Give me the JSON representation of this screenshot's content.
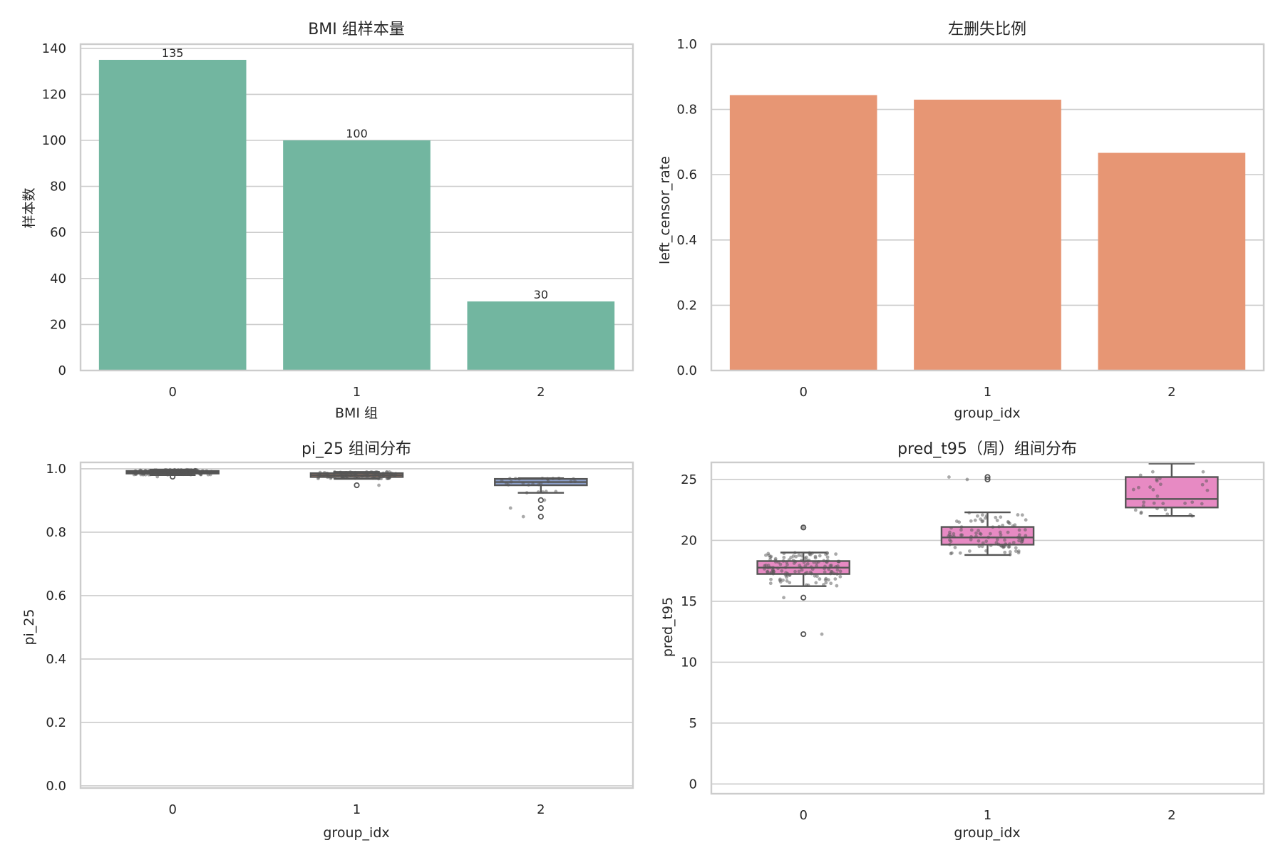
{
  "figure": {
    "background": "#ffffff",
    "grid_color": "#cccccc",
    "text_color": "#262626"
  },
  "chart_data": [
    {
      "id": "bmi-count",
      "type": "bar",
      "title": "BMI 组样本量",
      "xlabel": "BMI 组",
      "ylabel": "样本数",
      "categories": [
        "0",
        "1",
        "2"
      ],
      "values": [
        135,
        100,
        30
      ],
      "data_labels": [
        "135",
        "100",
        "30"
      ],
      "yticks": [
        0,
        20,
        40,
        60,
        80,
        100,
        120,
        140
      ],
      "ytick_labels": [
        "0",
        "20",
        "40",
        "60",
        "80",
        "100",
        "120",
        "140"
      ],
      "ylim": [
        0,
        141.8
      ],
      "grid": true,
      "color": "#72b6a0"
    },
    {
      "id": "left-censor",
      "type": "bar",
      "title": "左删失比例",
      "xlabel": "group_idx",
      "ylabel": "left_censor_rate",
      "categories": [
        "0",
        "1",
        "2"
      ],
      "values": [
        0.844,
        0.83,
        0.667
      ],
      "yticks": [
        0.0,
        0.2,
        0.4,
        0.6,
        0.8,
        1.0
      ],
      "ytick_labels": [
        "0.0",
        "0.2",
        "0.4",
        "0.6",
        "0.8",
        "1.0"
      ],
      "ylim": [
        0,
        1.0
      ],
      "grid": true,
      "color": "#e79674"
    },
    {
      "id": "pi25-box",
      "type": "box",
      "title": "pi_25 组间分布",
      "xlabel": "group_idx",
      "ylabel": "pi_25",
      "categories": [
        "0",
        "1",
        "2"
      ],
      "boxes": [
        {
          "q1": 0.985,
          "median": 0.99,
          "q3": 0.993,
          "whisker_low": 0.98,
          "whisker_high": 0.997,
          "outliers": [
            0.975
          ],
          "n": 135,
          "color": "#72b6a0"
        },
        {
          "q1": 0.974,
          "median": 0.98,
          "q3": 0.986,
          "whisker_low": 0.968,
          "whisker_high": 0.99,
          "outliers": [
            0.948
          ],
          "n": 100,
          "color": "#e79674"
        },
        {
          "q1": 0.948,
          "median": 0.958,
          "q3": 0.968,
          "whisker_low": 0.924,
          "whisker_high": 0.97,
          "outliers": [
            0.901,
            0.876,
            0.849
          ],
          "n": 30,
          "color": "#8da0cb"
        }
      ],
      "yticks": [
        0.0,
        0.2,
        0.4,
        0.6,
        0.8,
        1.0
      ],
      "ytick_labels": [
        "0.0",
        "0.2",
        "0.4",
        "0.6",
        "0.8",
        "1.0"
      ],
      "ylim": [
        -0.007,
        1.02
      ],
      "grid": true,
      "strip_points": true
    },
    {
      "id": "pred-t95-box",
      "type": "box",
      "title": "pred_t95（周）组间分布",
      "xlabel": "group_idx",
      "ylabel": "pred_t95",
      "categories": [
        "0",
        "1",
        "2"
      ],
      "boxes": [
        {
          "q1": 17.24,
          "median": 17.76,
          "q3": 18.3,
          "whisker_low": 16.24,
          "whisker_high": 19.0,
          "outliers": [
            21.06,
            15.3,
            12.3
          ],
          "n": 135,
          "color": "#e78ac3"
        },
        {
          "q1": 19.65,
          "median": 20.24,
          "q3": 21.1,
          "whisker_low": 18.8,
          "whisker_high": 22.3,
          "outliers": [
            25.0,
            25.2
          ],
          "n": 100,
          "color": "#e78ac3"
        },
        {
          "q1": 22.7,
          "median": 23.4,
          "q3": 25.2,
          "whisker_low": 22.0,
          "whisker_high": 26.3,
          "outliers": [],
          "n": 30,
          "color": "#e78ac3"
        }
      ],
      "yticks": [
        0,
        5,
        10,
        15,
        20,
        25
      ],
      "ytick_labels": [
        "0",
        "5",
        "10",
        "15",
        "20",
        "25"
      ],
      "ylim": [
        -0.8,
        26.4
      ],
      "grid": true,
      "strip_points": true
    }
  ]
}
